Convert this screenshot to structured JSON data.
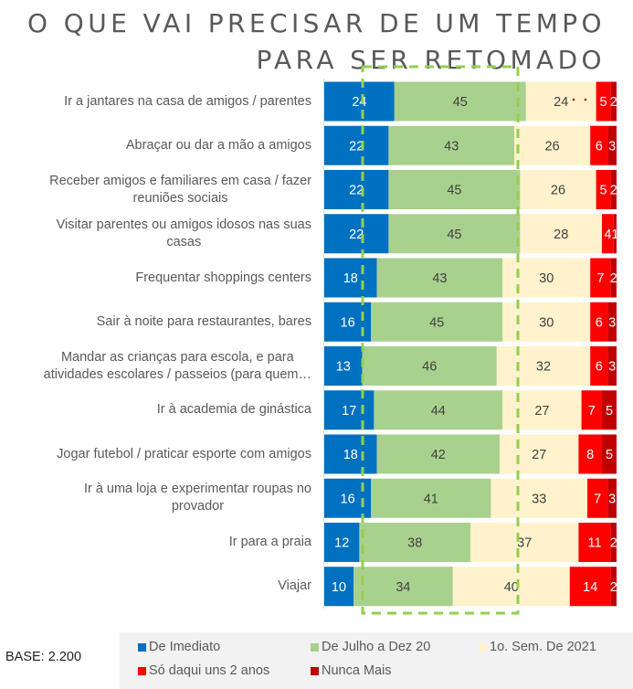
{
  "title_line1": "O QUE VAI PRECISAR DE UM TEMPO",
  "title_line2": "PARA SER RETOMADO",
  "base_label": "BASE: 2.200",
  "colors": {
    "de_imediato": "#0070c0",
    "julho_dez": "#a9d18e",
    "sem1_2021": "#fff2cc",
    "dois_anos": "#ff0000",
    "nunca_mais": "#c00000",
    "highlight_box": "#92d050"
  },
  "chart_data": {
    "type": "bar",
    "orientation": "horizontal",
    "stacked": true,
    "title": "O QUE VAI PRECISAR DE UM TEMPO PARA SER RETOMADO",
    "xlabel": "",
    "ylabel": "",
    "xlim": [
      0,
      100
    ],
    "grid": false,
    "legend_position": "bottom",
    "categories": [
      "Ir a jantares na casa de amigos / parentes",
      "Abraçar ou dar a mão a amigos",
      "Receber amigos e familiares em casa / fazer reuniões sociais",
      "Visitar parentes ou amigos idosos nas suas casas",
      "Frequentar shoppings centers",
      "Sair à noite para restaurantes, bares",
      "Mandar as crianças para escola, e para atividades escolares / passeios (para quem…",
      "Ir à academia de ginástica",
      "Jogar futebol / praticar esporte com amigos",
      "Ir à uma loja e experimentar roupas no provador",
      "Ir para a praia",
      "Viajar"
    ],
    "series": [
      {
        "name": "De Imediato",
        "color": "#0070c0",
        "label_color": "#ffffff",
        "values": [
          24,
          22,
          22,
          22,
          18,
          16,
          13,
          17,
          18,
          16,
          12,
          10
        ]
      },
      {
        "name": "De Julho a Dez 20",
        "color": "#a9d18e",
        "label_color": "#404040",
        "values": [
          45,
          43,
          45,
          45,
          43,
          45,
          46,
          44,
          42,
          41,
          38,
          34
        ]
      },
      {
        "name": "1o. Sem. De 2021",
        "color": "#fff2cc",
        "label_color": "#404040",
        "values": [
          24,
          26,
          26,
          28,
          30,
          30,
          32,
          27,
          27,
          33,
          37,
          40
        ]
      },
      {
        "name": "Só daqui uns 2 anos",
        "color": "#ff0000",
        "label_color": "#ffffff",
        "values": [
          5,
          6,
          5,
          4,
          7,
          6,
          6,
          7,
          8,
          7,
          11,
          14
        ]
      },
      {
        "name": "Nunca Mais",
        "color": "#c00000",
        "label_color": "#ffffff",
        "values": [
          2,
          3,
          2,
          1,
          2,
          3,
          3,
          5,
          5,
          3,
          2,
          2
        ]
      }
    ],
    "annotation": "Dashed green box highlighting the 'De Julho a Dez 20' column"
  },
  "category_lines": [
    [
      "Ir a jantares na casa de amigos / parentes"
    ],
    [
      "Abraçar ou dar a mão a amigos"
    ],
    [
      "Receber amigos e familiares em casa / fazer",
      "reuniões sociais"
    ],
    [
      "Visitar parentes ou amigos idosos nas suas",
      "casas"
    ],
    [
      "Frequentar shoppings centers"
    ],
    [
      "Sair à noite para restaurantes, bares"
    ],
    [
      "Mandar as crianças para escola, e para",
      "atividades escolares / passeios (para quem…"
    ],
    [
      "Ir à academia de ginástica"
    ],
    [
      "Jogar futebol / praticar esporte com amigos"
    ],
    [
      "Ir à uma loja e experimentar roupas no",
      "provador"
    ],
    [
      "Ir para a praia"
    ],
    [
      "Viajar"
    ]
  ],
  "legend": [
    {
      "label": "De Imediato",
      "color": "#0070c0"
    },
    {
      "label": "De Julho a Dez 20",
      "color": "#a9d18e"
    },
    {
      "label": "1o. Sem. De 2021",
      "color": "#fff2cc"
    },
    {
      "label": "Só daqui uns 2 anos",
      "color": "#ff0000"
    },
    {
      "label": "Nunca Mais",
      "color": "#c00000"
    }
  ]
}
